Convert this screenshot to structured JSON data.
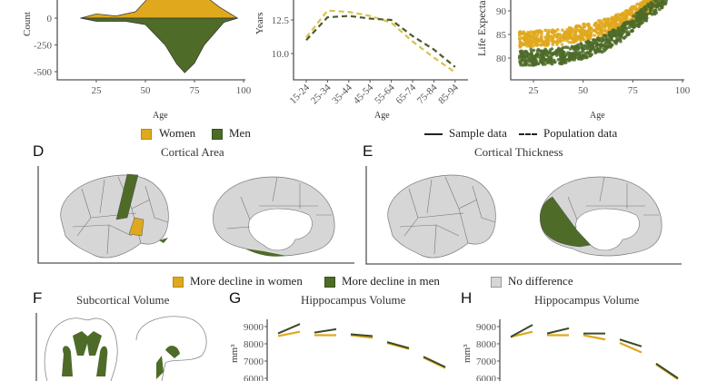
{
  "colors": {
    "women": "#e0a81c",
    "men": "#4e6b28",
    "no_difference": "#d6d6d6",
    "axis": "#555555"
  },
  "legend_top": {
    "women": "Women",
    "men": "Men",
    "sample": "Sample data",
    "population": "Population data"
  },
  "legend_mid": {
    "women": "More decline in women",
    "men": "More decline in men",
    "none": "No difference"
  },
  "panels": {
    "D": {
      "letter": "D",
      "title": "Cortical Area"
    },
    "E": {
      "letter": "E",
      "title": "Cortical Thickness"
    },
    "F": {
      "letter": "F",
      "title": "Subcortical Volume"
    },
    "G": {
      "letter": "G",
      "title": "Hippocampus Volume"
    },
    "H": {
      "letter": "H",
      "title": "Hippocampus Volume"
    }
  },
  "chart_data": [
    {
      "id": "A",
      "type": "area",
      "xlabel": "Age",
      "ylabel": "Count",
      "xticks": [
        25,
        50,
        75,
        100
      ],
      "yticks": [
        0,
        -250,
        -500
      ],
      "series": [
        {
          "name": "Women",
          "points": [
            [
              17,
              0
            ],
            [
              25,
              40
            ],
            [
              35,
              20
            ],
            [
              45,
              60
            ],
            [
              52,
              200
            ],
            [
              60,
              500
            ],
            [
              70,
              600
            ],
            [
              80,
              400
            ],
            [
              88,
              100
            ],
            [
              97,
              0
            ]
          ]
        },
        {
          "name": "Men",
          "points": [
            [
              17,
              0
            ],
            [
              25,
              -30
            ],
            [
              40,
              -30
            ],
            [
              50,
              -60
            ],
            [
              60,
              -250
            ],
            [
              66,
              -430
            ],
            [
              70,
              -510
            ],
            [
              75,
              -420
            ],
            [
              80,
              -250
            ],
            [
              90,
              -40
            ],
            [
              97,
              0
            ]
          ]
        }
      ]
    },
    {
      "id": "B",
      "type": "line",
      "xlabel": "Age",
      "ylabel": "Years",
      "yticks": [
        "12.5",
        "10.0"
      ],
      "categories": [
        "15-24",
        "25-34",
        "35-44",
        "45-54",
        "55-64",
        "65-74",
        "75-84",
        "85-94"
      ],
      "series": [
        {
          "name": "Women",
          "style": "Population data",
          "values": [
            11.2,
            13.2,
            13.1,
            12.8,
            12.3,
            10.9,
            9.7,
            8.6
          ]
        },
        {
          "name": "Men",
          "style": "Population data",
          "values": [
            11.0,
            12.7,
            12.8,
            12.6,
            12.5,
            11.3,
            10.3,
            9.0
          ]
        }
      ]
    },
    {
      "id": "C",
      "type": "scatter",
      "xlabel": "Age",
      "ylabel": "Life Expectancy",
      "xticks": [
        25,
        50,
        75,
        100
      ],
      "yticks": [
        90,
        85,
        80
      ],
      "series": [
        {
          "name": "Women",
          "trend": [
            [
              18,
              84
            ],
            [
              40,
              84.5
            ],
            [
              50,
              85.5
            ],
            [
              60,
              86.5
            ],
            [
              70,
              88
            ],
            [
              80,
              90.5
            ],
            [
              88,
              93
            ]
          ]
        },
        {
          "name": "Men",
          "trend": [
            [
              18,
              80
            ],
            [
              40,
              80.5
            ],
            [
              50,
              81.5
            ],
            [
              60,
              83
            ],
            [
              70,
              85.5
            ],
            [
              80,
              89
            ],
            [
              92,
              93
            ]
          ]
        }
      ]
    },
    {
      "id": "G",
      "type": "line",
      "ylabel": "mm³",
      "yticks": [
        9000,
        8000,
        7000,
        6000
      ],
      "segments": [
        {
          "women": [
            8450,
            8700
          ],
          "men": [
            8600,
            9150
          ]
        },
        {
          "women": [
            8500,
            8500
          ],
          "men": [
            8650,
            8850
          ]
        },
        {
          "women": [
            8500,
            8350
          ],
          "men": [
            8550,
            8450
          ]
        },
        {
          "women": [
            8050,
            7700
          ],
          "men": [
            8100,
            7750
          ]
        },
        {
          "women": [
            7200,
            6600
          ],
          "men": [
            7250,
            6650
          ]
        }
      ]
    },
    {
      "id": "H",
      "type": "line",
      "ylabel": "mm³",
      "yticks": [
        9000,
        8000,
        7000,
        6000
      ],
      "segments": [
        {
          "women": [
            8400,
            8700
          ],
          "men": [
            8400,
            9100
          ]
        },
        {
          "women": [
            8500,
            8500
          ],
          "men": [
            8600,
            8900
          ]
        },
        {
          "women": [
            8500,
            8250
          ],
          "men": [
            8600,
            8600
          ]
        },
        {
          "women": [
            8050,
            7500
          ],
          "men": [
            8250,
            7850
          ]
        },
        {
          "women": [
            6800,
            5950
          ],
          "men": [
            6850,
            6000
          ]
        }
      ]
    }
  ]
}
